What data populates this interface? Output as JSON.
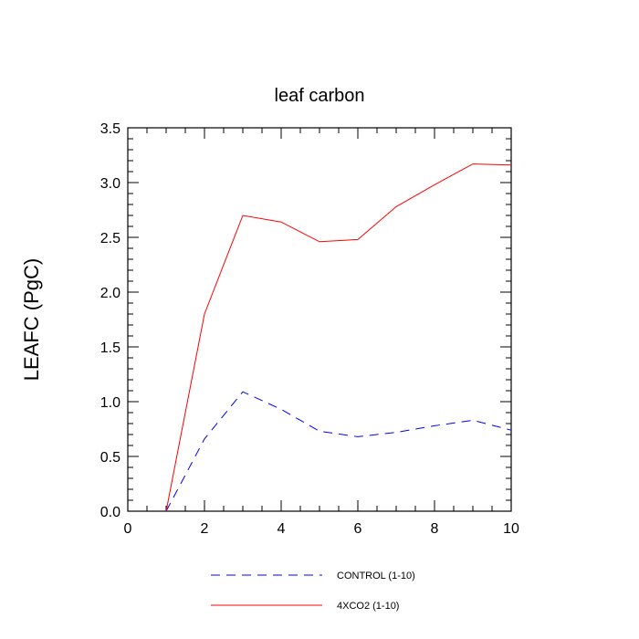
{
  "chart_data": {
    "type": "line",
    "title": "leaf carbon",
    "xlabel": "",
    "ylabel": "LEAFC  (PgC)",
    "xlim": [
      0,
      10
    ],
    "ylim": [
      0,
      3.5
    ],
    "x_ticks": [
      0,
      2,
      4,
      6,
      8,
      10
    ],
    "x_tick_labels": [
      "0",
      "2",
      "4",
      "6",
      "8",
      "10"
    ],
    "y_ticks": [
      0,
      0.5,
      1.0,
      1.5,
      2.0,
      2.5,
      3.0,
      3.5
    ],
    "y_tick_labels": [
      "0.0",
      "0.5",
      "1.0",
      "1.5",
      "2.0",
      "2.5",
      "3.0",
      "3.5"
    ],
    "grid": false,
    "legend_position": "bottom",
    "series": [
      {
        "name": "CONTROL (1-10)",
        "color": "#0000ff",
        "style": "dashed",
        "x": [
          1,
          2,
          3,
          4,
          5,
          6,
          7,
          8,
          9,
          10
        ],
        "values": [
          0.0,
          0.66,
          1.09,
          0.93,
          0.73,
          0.68,
          0.72,
          0.78,
          0.83,
          0.74
        ]
      },
      {
        "name": "4XCO2 (1-10)",
        "color": "#ff0000",
        "style": "solid",
        "x": [
          1,
          2,
          3,
          4,
          5,
          6,
          7,
          8,
          9,
          10
        ],
        "values": [
          0.0,
          1.8,
          2.7,
          2.64,
          2.46,
          2.48,
          2.78,
          2.98,
          3.17,
          3.16
        ]
      }
    ]
  }
}
